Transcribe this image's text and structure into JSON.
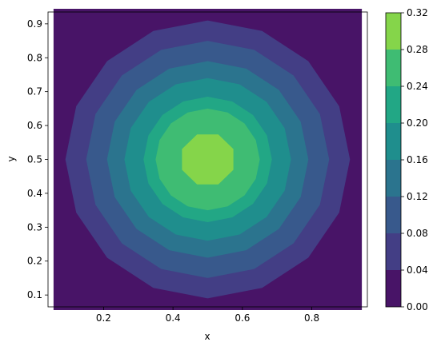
{
  "chart_data": {
    "type": "contourf",
    "xlabel": "x",
    "ylabel": "y",
    "xlim": [
      0.04,
      0.96
    ],
    "ylim": [
      0.065,
      0.935
    ],
    "x_ticks": [
      "0.2",
      "0.4",
      "0.6",
      "0.8"
    ],
    "x_tick_values": [
      0.2,
      0.4,
      0.6,
      0.8
    ],
    "y_ticks": [
      "0.1",
      "0.2",
      "0.3",
      "0.4",
      "0.5",
      "0.6",
      "0.7",
      "0.8",
      "0.9"
    ],
    "y_tick_values": [
      0.1,
      0.2,
      0.3,
      0.4,
      0.5,
      0.6,
      0.7,
      0.8,
      0.9
    ],
    "data_extent": {
      "x": [
        0.0556,
        0.9444
      ],
      "y": [
        0.0556,
        0.9444
      ]
    },
    "grid": false,
    "colorbar": {
      "levels": [
        0.0,
        0.04,
        0.08,
        0.12,
        0.16,
        0.2,
        0.24,
        0.28,
        0.32
      ],
      "tick_labels": [
        "0.00",
        "0.04",
        "0.08",
        "0.12",
        "0.16",
        "0.20",
        "0.24",
        "0.28",
        "0.32"
      ],
      "colors": [
        "#481467",
        "#433e85",
        "#38598c",
        "#2b748e",
        "#1f8e8d",
        "#22a785",
        "#3fbc73",
        "#85d54a",
        "#dde318"
      ]
    },
    "field": {
      "description_of_shape": "radially symmetric peak centered at (0.5, 0.5)",
      "center": [
        0.5,
        0.5
      ],
      "peak_value": 0.32,
      "contour_radii": {
        "0.04": 0.41,
        "0.08": 0.35,
        "0.12": 0.29,
        "0.16": 0.24,
        "0.20": 0.185,
        "0.24": 0.15,
        "0.28": 0.08
      }
    }
  }
}
